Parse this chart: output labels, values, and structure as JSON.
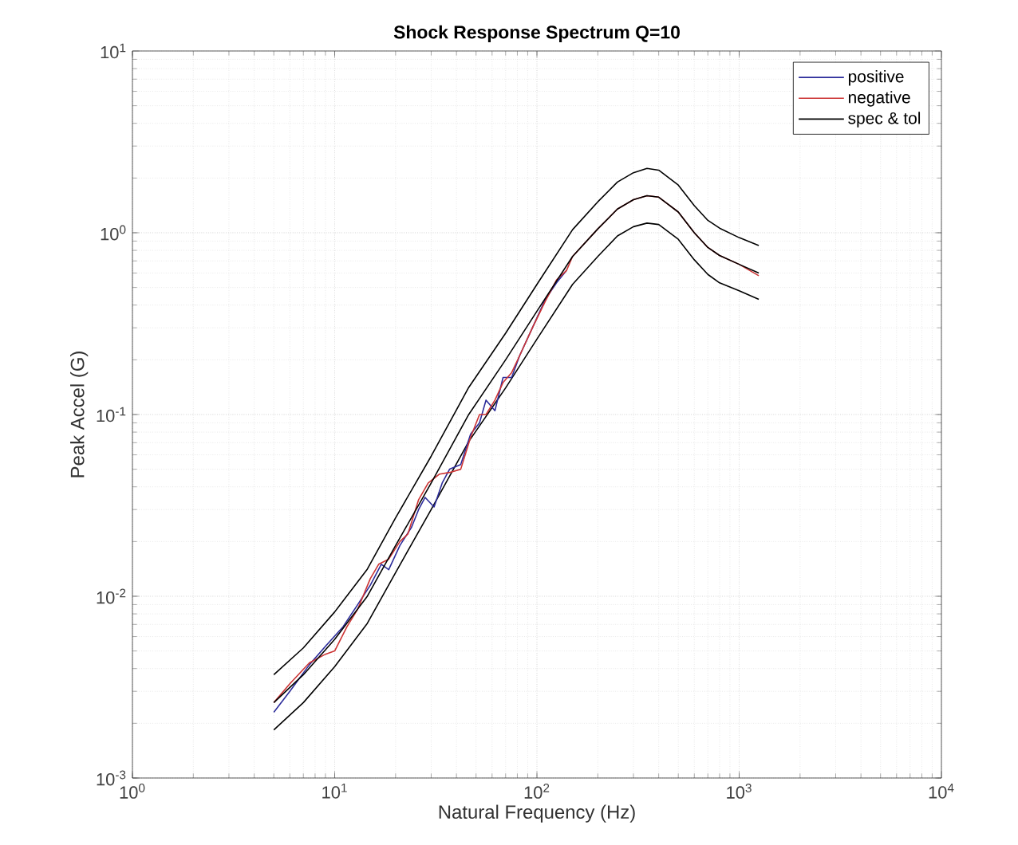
{
  "chart_data": {
    "type": "line",
    "title": "Shock Response Spectrum Q=10",
    "xlabel": "Natural Frequency (Hz)",
    "ylabel": "Peak Accel (G)",
    "log": "xy",
    "grid": true,
    "legend": "top right",
    "line_style": "solid",
    "marker": "none",
    "xlim": [
      1,
      10000
    ],
    "ylim": [
      0.001,
      10
    ],
    "xticks": [
      {
        "value": 1,
        "label": "10$^{0}$"
      },
      {
        "value": 10,
        "label": "10$^{1}$"
      },
      {
        "value": 100,
        "label": "10$^{2}$"
      },
      {
        "value": 1000,
        "label": "10$^{3}$"
      },
      {
        "value": 10000,
        "label": "10$^{4}$"
      }
    ],
    "yticks": [
      {
        "value": 0.001,
        "label": "10$^{-3}$"
      },
      {
        "value": 0.01,
        "label": "10$^{-2}$"
      },
      {
        "value": 0.1,
        "label": "10$^{-1}$"
      },
      {
        "value": 1,
        "label": "10$^{0}$"
      },
      {
        "value": 10,
        "label": "10$^{1}$"
      }
    ],
    "series": [
      {
        "name": "positive",
        "color": "#2b2b9a",
        "x": [
          5,
          6,
          7.5,
          9,
          11,
          13,
          15,
          17,
          18.5,
          21,
          24,
          26,
          28,
          31,
          34,
          37,
          42,
          47,
          52,
          56,
          62,
          68,
          75,
          82,
          95,
          110,
          125,
          140
        ],
        "values": [
          0.0023,
          0.003,
          0.0042,
          0.0053,
          0.0068,
          0.009,
          0.0115,
          0.015,
          0.014,
          0.019,
          0.024,
          0.03,
          0.035,
          0.031,
          0.042,
          0.05,
          0.053,
          0.078,
          0.09,
          0.12,
          0.105,
          0.16,
          0.16,
          0.21,
          0.3,
          0.43,
          0.53,
          0.62
        ]
      },
      {
        "name": "negative",
        "color": "#cc3333",
        "x": [
          5,
          6,
          7.5,
          9,
          10,
          11.5,
          13,
          15,
          16.5,
          18.5,
          21,
          23,
          26,
          29,
          33,
          37,
          42,
          47,
          52,
          56,
          62,
          68,
          75,
          82,
          95,
          110,
          125,
          140,
          150,
          200,
          250,
          300,
          350,
          400,
          500,
          600,
          700,
          800,
          1000,
          1250
        ],
        "values": [
          0.0026,
          0.0033,
          0.0043,
          0.0048,
          0.005,
          0.0068,
          0.0085,
          0.0125,
          0.015,
          0.016,
          0.02,
          0.022,
          0.034,
          0.042,
          0.047,
          0.048,
          0.05,
          0.075,
          0.1,
          0.1,
          0.12,
          0.15,
          0.17,
          0.21,
          0.3,
          0.42,
          0.55,
          0.62,
          0.74,
          1.05,
          1.35,
          1.52,
          1.6,
          1.57,
          1.3,
          1.0,
          0.83,
          0.75,
          0.67,
          0.58
        ]
      },
      {
        "name": "spec & tol",
        "color": "#000000",
        "x": [
          5,
          7,
          10,
          14.5,
          20,
          30,
          46,
          70,
          100,
          150,
          200,
          250,
          300,
          350,
          400,
          500,
          600,
          700,
          800,
          1000,
          1250
        ],
        "values": [
          0.0026,
          0.0037,
          0.0058,
          0.01,
          0.019,
          0.042,
          0.1,
          0.2,
          0.37,
          0.74,
          1.05,
          1.35,
          1.52,
          1.6,
          1.57,
          1.3,
          1.0,
          0.83,
          0.75,
          0.67,
          0.6
        ]
      },
      {
        "color": "#000000",
        "x": [
          5,
          7,
          10,
          14.5,
          20,
          30,
          46,
          70,
          100,
          150,
          200,
          250,
          300,
          350,
          400,
          500,
          600,
          700,
          800,
          1000,
          1250
        ],
        "values": [
          0.0037,
          0.0052,
          0.0082,
          0.0141,
          0.027,
          0.059,
          0.141,
          0.28,
          0.52,
          1.04,
          1.48,
          1.9,
          2.14,
          2.26,
          2.21,
          1.83,
          1.41,
          1.17,
          1.06,
          0.94,
          0.85
        ]
      },
      {
        "color": "#000000",
        "x": [
          5,
          7,
          10,
          14.5,
          20,
          30,
          46,
          70,
          100,
          150,
          200,
          250,
          300,
          350,
          400,
          500,
          600,
          700,
          800,
          1000,
          1250
        ],
        "values": [
          0.00184,
          0.0026,
          0.0041,
          0.0071,
          0.0135,
          0.03,
          0.071,
          0.14,
          0.26,
          0.52,
          0.74,
          0.96,
          1.08,
          1.13,
          1.11,
          0.92,
          0.71,
          0.59,
          0.53,
          0.48,
          0.43
        ]
      }
    ]
  }
}
